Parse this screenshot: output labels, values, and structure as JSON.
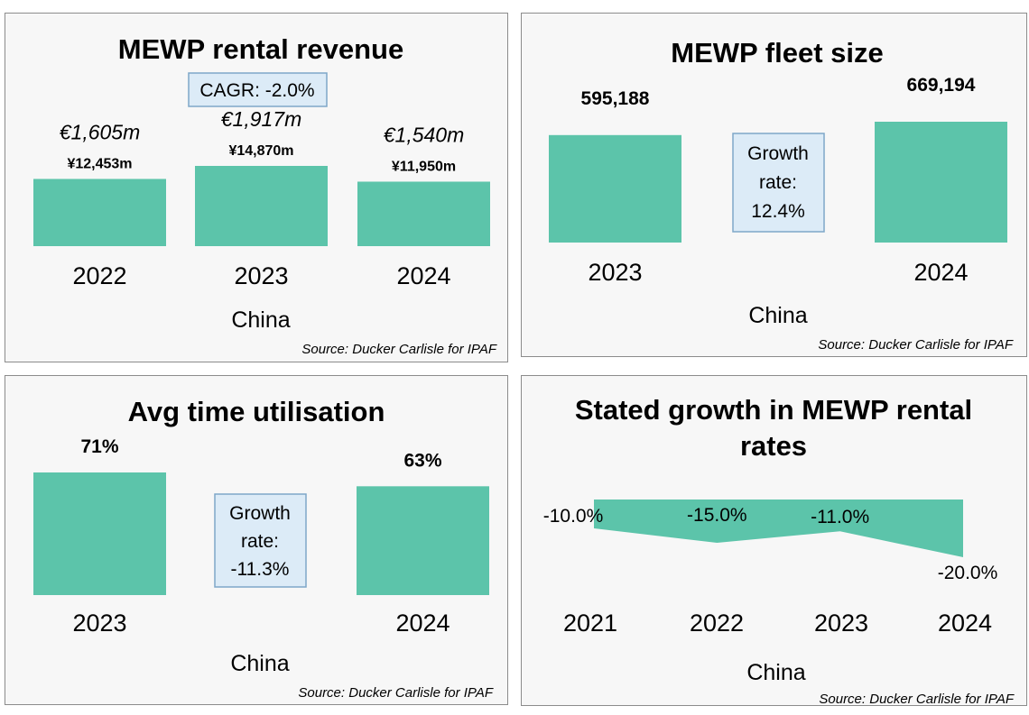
{
  "colors": {
    "bar": "#5cc4aa",
    "callout_fill": "#dcebf7",
    "callout_border": "#7ea7c8",
    "panel_bg": "#f7f7f7"
  },
  "chart_data": [
    {
      "type": "bar",
      "title": "MEWP rental revenue",
      "categories": [
        "2022",
        "2023",
        "2024"
      ],
      "values": [
        12453,
        14870,
        11950
      ],
      "value_unit": "¥m",
      "labels_eur": [
        "€1,605m",
        "€1,917m",
        "€1,540m"
      ],
      "labels_cny": [
        "¥12,453m",
        "¥14,870m",
        "¥11,950m"
      ],
      "callout": "CAGR: -2.0%",
      "xlabel": "China",
      "source": "Source:  Ducker Carlisle  for IPAF",
      "ylim": [
        0,
        15500
      ]
    },
    {
      "type": "bar",
      "title": "MEWP fleet size",
      "categories": [
        "2023",
        "2024"
      ],
      "values": [
        595188,
        669194
      ],
      "labels": [
        "595,188",
        "669,194"
      ],
      "callout": [
        "Growth",
        "rate:",
        "12.4%"
      ],
      "xlabel": "China",
      "source": "Source:  Ducker Carlisle  for IPAF",
      "ylim": [
        0,
        700000
      ]
    },
    {
      "type": "bar",
      "title": "Avg time utilisation",
      "categories": [
        "2023",
        "2024"
      ],
      "values": [
        71,
        63
      ],
      "labels": [
        "71%",
        "63%"
      ],
      "callout": [
        "Growth",
        "rate:",
        "-11.3%"
      ],
      "xlabel": "China",
      "source": "Source:  Ducker Carlisle  for IPAF",
      "ylim": [
        0,
        75
      ]
    },
    {
      "type": "area",
      "title": [
        "Stated growth in MEWP rental",
        "rates"
      ],
      "categories": [
        "2021",
        "2022",
        "2023",
        "2024"
      ],
      "values": [
        -10.0,
        -15.0,
        -11.0,
        -20.0
      ],
      "labels": [
        "-10.0%",
        "-15.0%",
        "-11.0%",
        "-20.0%"
      ],
      "xlabel": "China",
      "source": "Source:  Ducker Carlisle  for IPAF",
      "ylim": [
        -20,
        0
      ]
    }
  ]
}
